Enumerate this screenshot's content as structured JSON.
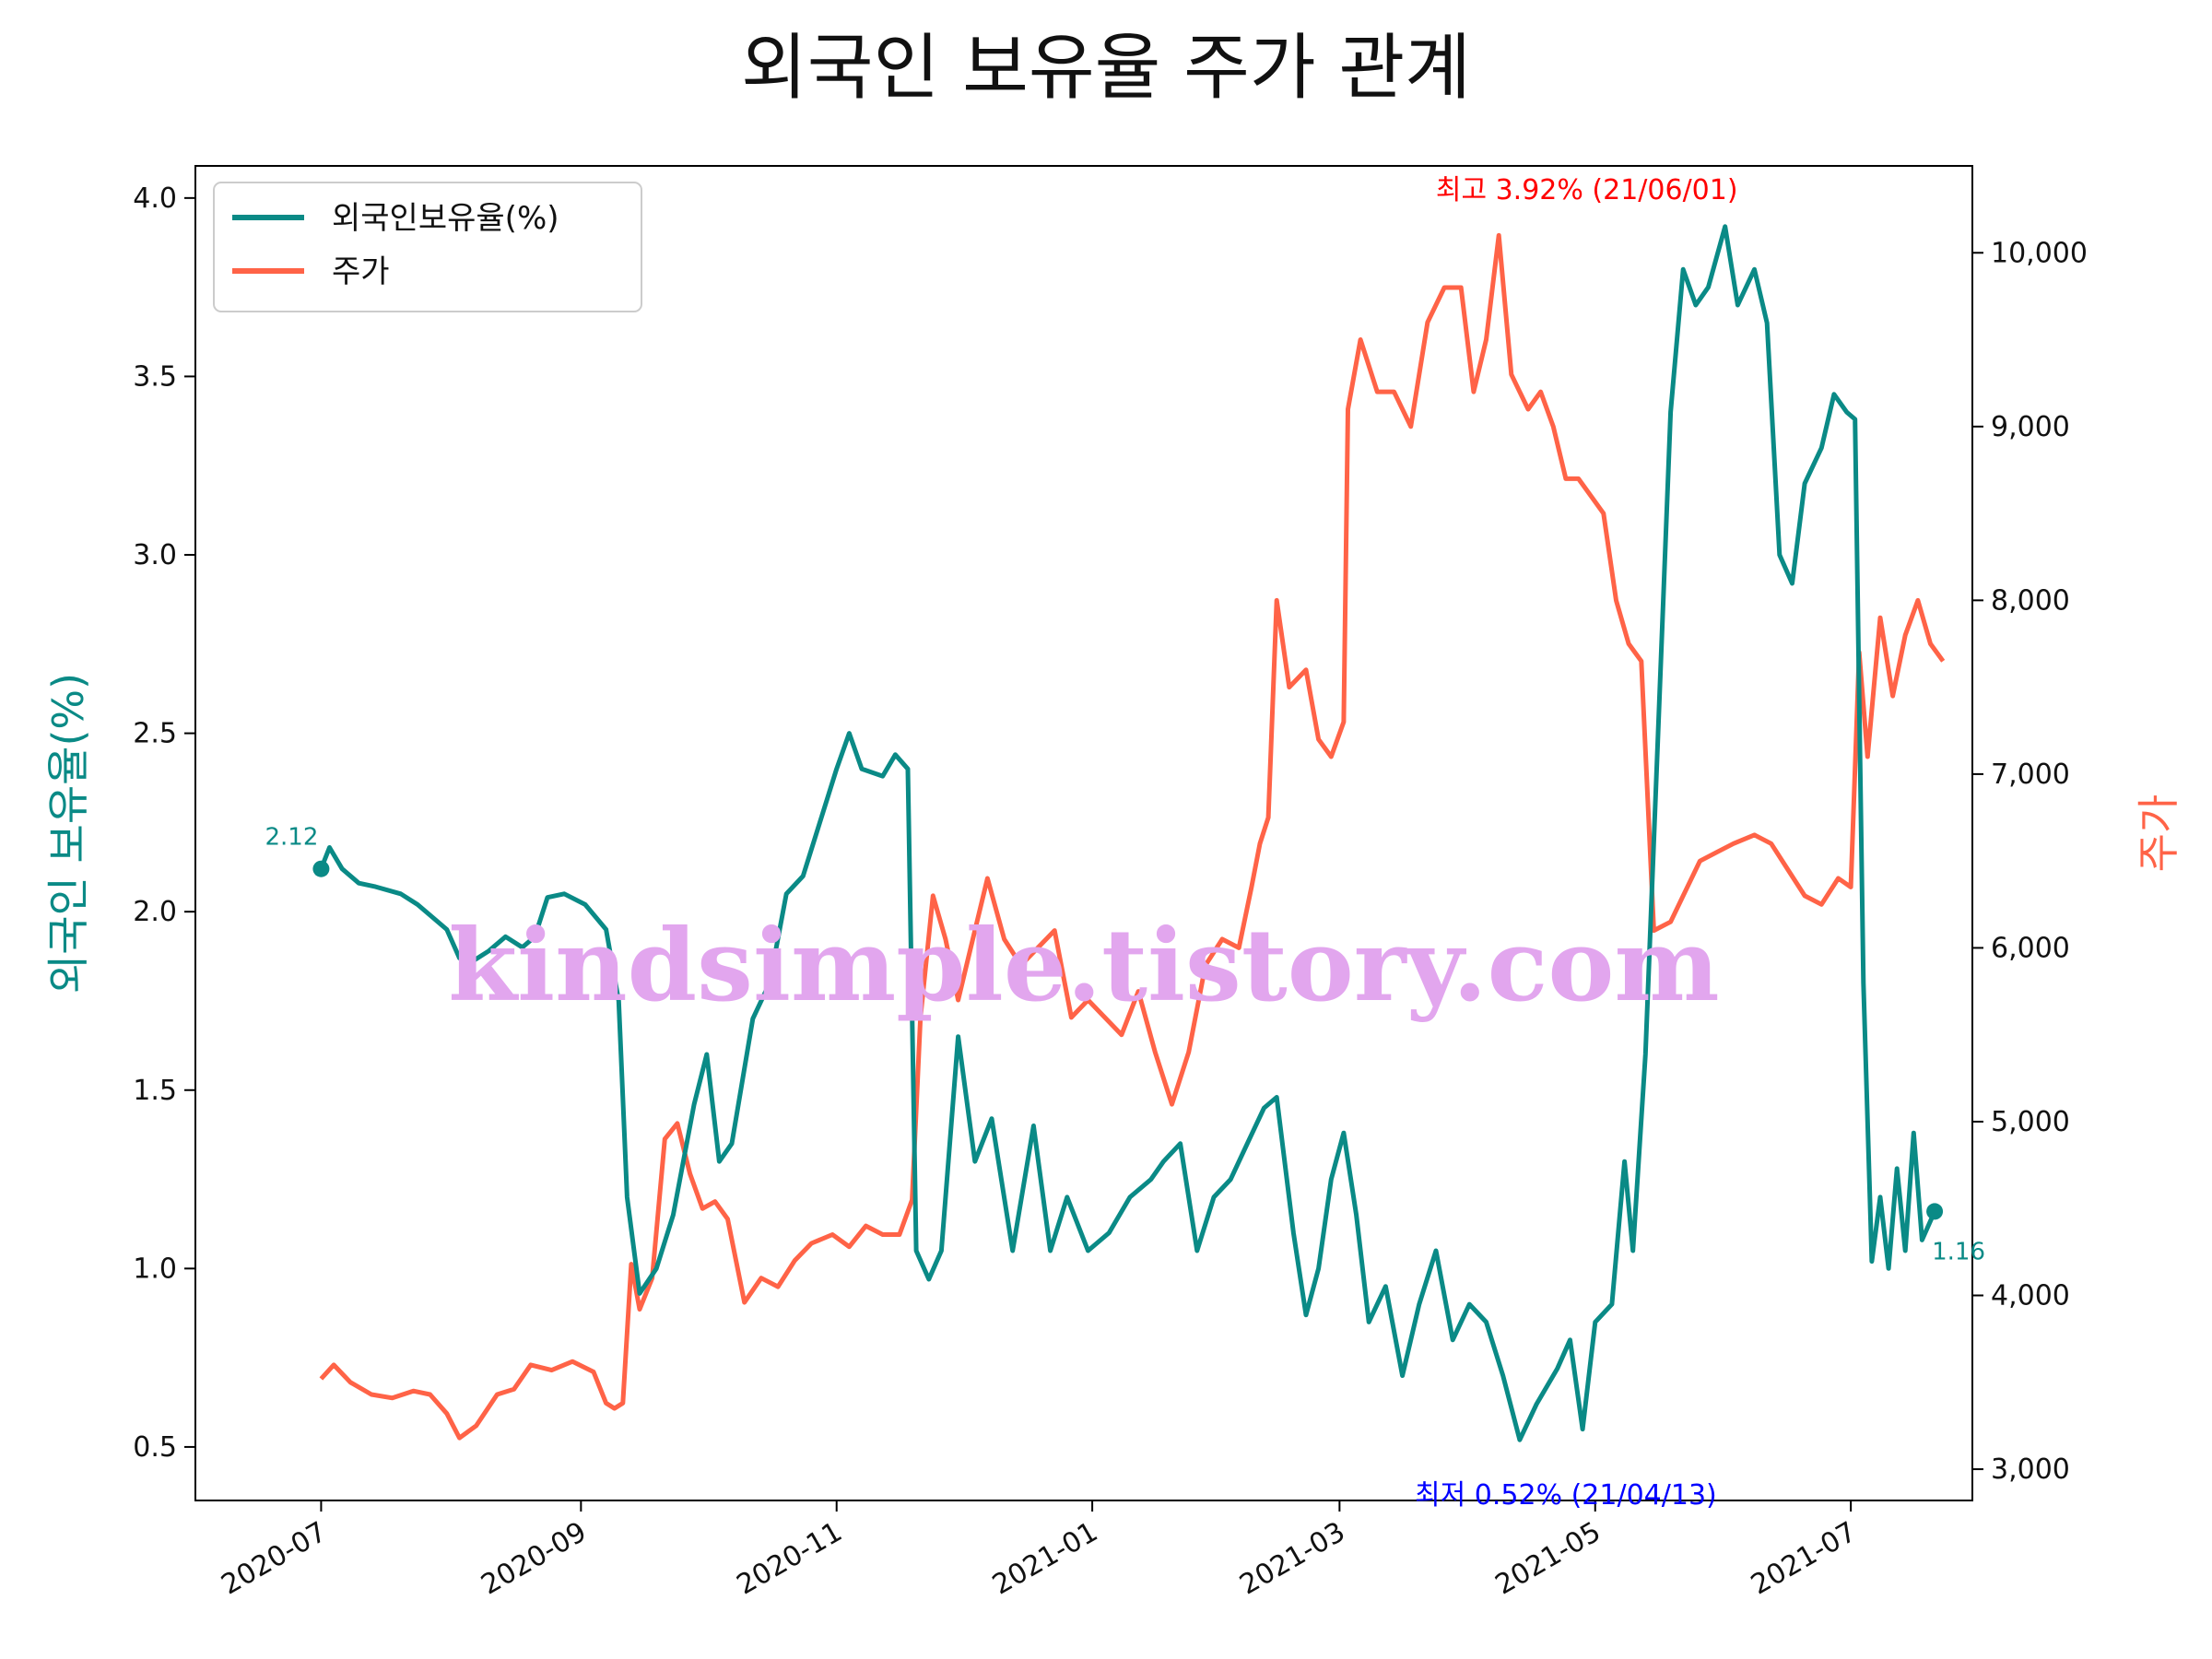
{
  "chart_data": {
    "type": "line",
    "title": "외국인 보유율 주가 관계",
    "ylabel_left": "외국인 보유율(%)",
    "ylabel_right": "주가",
    "ylim_left": [
      0.35,
      4.09
    ],
    "ylim_right": [
      2820,
      10500
    ],
    "xlim": [
      "2020-06-01",
      "2021-07-30"
    ],
    "x_ticks": [
      "2020-07",
      "2020-09",
      "2020-11",
      "2021-01",
      "2021-03",
      "2021-05",
      "2021-07"
    ],
    "y_ticks_left": [
      "0.5",
      "1.0",
      "1.5",
      "2.0",
      "2.5",
      "3.0",
      "3.5",
      "4.0"
    ],
    "y_ticks_right": [
      "3,000",
      "4,000",
      "5,000",
      "6,000",
      "7,000",
      "8,000",
      "9,000",
      "10,000"
    ],
    "legend_placement": "top-left",
    "grid": false,
    "series": [
      {
        "name": "외국인보유율(%)",
        "axis": "left",
        "color": "#0a8a86",
        "points": [
          [
            "2020-07-01",
            2.12
          ],
          [
            "2020-07-03",
            2.18
          ],
          [
            "2020-07-06",
            2.12
          ],
          [
            "2020-07-10",
            2.08
          ],
          [
            "2020-07-14",
            2.07
          ],
          [
            "2020-07-20",
            2.05
          ],
          [
            "2020-07-24",
            2.02
          ],
          [
            "2020-07-28",
            1.98
          ],
          [
            "2020-07-31",
            1.95
          ],
          [
            "2020-08-03",
            1.87
          ],
          [
            "2020-08-06",
            1.86
          ],
          [
            "2020-08-10",
            1.89
          ],
          [
            "2020-08-14",
            1.93
          ],
          [
            "2020-08-18",
            1.9
          ],
          [
            "2020-08-21",
            1.93
          ],
          [
            "2020-08-24",
            2.04
          ],
          [
            "2020-08-28",
            2.05
          ],
          [
            "2020-09-02",
            2.02
          ],
          [
            "2020-09-07",
            1.95
          ],
          [
            "2020-09-10",
            1.75
          ],
          [
            "2020-09-12",
            1.2
          ],
          [
            "2020-09-15",
            0.93
          ],
          [
            "2020-09-19",
            1.0
          ],
          [
            "2020-09-23",
            1.15
          ],
          [
            "2020-09-28",
            1.46
          ],
          [
            "2020-10-01",
            1.6
          ],
          [
            "2020-10-04",
            1.3
          ],
          [
            "2020-10-07",
            1.35
          ],
          [
            "2020-10-12",
            1.7
          ],
          [
            "2020-10-16",
            1.8
          ],
          [
            "2020-10-20",
            2.05
          ],
          [
            "2020-10-24",
            2.1
          ],
          [
            "2020-10-28",
            2.25
          ],
          [
            "2020-11-01",
            2.4
          ],
          [
            "2020-11-04",
            2.5
          ],
          [
            "2020-11-07",
            2.4
          ],
          [
            "2020-11-12",
            2.38
          ],
          [
            "2020-11-15",
            2.44
          ],
          [
            "2020-11-18",
            2.4
          ],
          [
            "2020-11-20",
            1.05
          ],
          [
            "2020-11-23",
            0.97
          ],
          [
            "2020-11-26",
            1.05
          ],
          [
            "2020-11-30",
            1.65
          ],
          [
            "2020-12-04",
            1.3
          ],
          [
            "2020-12-08",
            1.42
          ],
          [
            "2020-12-13",
            1.05
          ],
          [
            "2020-12-18",
            1.4
          ],
          [
            "2020-12-22",
            1.05
          ],
          [
            "2020-12-26",
            1.2
          ],
          [
            "2020-12-31",
            1.05
          ],
          [
            "2021-01-05",
            1.1
          ],
          [
            "2021-01-10",
            1.2
          ],
          [
            "2021-01-15",
            1.25
          ],
          [
            "2021-01-18",
            1.3
          ],
          [
            "2021-01-22",
            1.35
          ],
          [
            "2021-01-26",
            1.05
          ],
          [
            "2021-01-30",
            1.2
          ],
          [
            "2021-02-03",
            1.25
          ],
          [
            "2021-02-07",
            1.35
          ],
          [
            "2021-02-11",
            1.45
          ],
          [
            "2021-02-14",
            1.48
          ],
          [
            "2021-02-18",
            1.1
          ],
          [
            "2021-02-21",
            0.87
          ],
          [
            "2021-02-24",
            1.0
          ],
          [
            "2021-02-27",
            1.25
          ],
          [
            "2021-03-02",
            1.38
          ],
          [
            "2021-03-05",
            1.15
          ],
          [
            "2021-03-08",
            0.85
          ],
          [
            "2021-03-12",
            0.95
          ],
          [
            "2021-03-16",
            0.7
          ],
          [
            "2021-03-20",
            0.9
          ],
          [
            "2021-03-24",
            1.05
          ],
          [
            "2021-03-28",
            0.8
          ],
          [
            "2021-04-01",
            0.9
          ],
          [
            "2021-04-05",
            0.85
          ],
          [
            "2021-04-09",
            0.7
          ],
          [
            "2021-04-13",
            0.52
          ],
          [
            "2021-04-17",
            0.62
          ],
          [
            "2021-04-22",
            0.72
          ],
          [
            "2021-04-25",
            0.8
          ],
          [
            "2021-04-28",
            0.55
          ],
          [
            "2021-05-01",
            0.85
          ],
          [
            "2021-05-05",
            0.9
          ],
          [
            "2021-05-08",
            1.3
          ],
          [
            "2021-05-10",
            1.05
          ],
          [
            "2021-05-13",
            1.6
          ],
          [
            "2021-05-16",
            2.5
          ],
          [
            "2021-05-19",
            3.4
          ],
          [
            "2021-05-22",
            3.8
          ],
          [
            "2021-05-25",
            3.7
          ],
          [
            "2021-05-28",
            3.75
          ],
          [
            "2021-06-01",
            3.92
          ],
          [
            "2021-06-04",
            3.7
          ],
          [
            "2021-06-08",
            3.8
          ],
          [
            "2021-06-11",
            3.65
          ],
          [
            "2021-06-14",
            3.0
          ],
          [
            "2021-06-17",
            2.92
          ],
          [
            "2021-06-20",
            3.2
          ],
          [
            "2021-06-24",
            3.3
          ],
          [
            "2021-06-27",
            3.45
          ],
          [
            "2021-06-30",
            3.4
          ],
          [
            "2021-07-02",
            3.38
          ],
          [
            "2021-07-04",
            1.8
          ],
          [
            "2021-07-06",
            1.02
          ],
          [
            "2021-07-08",
            1.2
          ],
          [
            "2021-07-10",
            1.0
          ],
          [
            "2021-07-12",
            1.28
          ],
          [
            "2021-07-14",
            1.05
          ],
          [
            "2021-07-16",
            1.38
          ],
          [
            "2021-07-18",
            1.08
          ],
          [
            "2021-07-21",
            1.16
          ]
        ]
      },
      {
        "name": "주가",
        "axis": "right",
        "color": "#ff6347",
        "points": [
          [
            "2020-07-01",
            3520
          ],
          [
            "2020-07-04",
            3600
          ],
          [
            "2020-07-08",
            3500
          ],
          [
            "2020-07-13",
            3430
          ],
          [
            "2020-07-18",
            3410
          ],
          [
            "2020-07-23",
            3450
          ],
          [
            "2020-07-27",
            3430
          ],
          [
            "2020-07-31",
            3320
          ],
          [
            "2020-08-03",
            3180
          ],
          [
            "2020-08-07",
            3250
          ],
          [
            "2020-08-12",
            3430
          ],
          [
            "2020-08-16",
            3460
          ],
          [
            "2020-08-20",
            3600
          ],
          [
            "2020-08-25",
            3570
          ],
          [
            "2020-08-30",
            3620
          ],
          [
            "2020-09-04",
            3560
          ],
          [
            "2020-09-07",
            3380
          ],
          [
            "2020-09-09",
            3350
          ],
          [
            "2020-09-11",
            3380
          ],
          [
            "2020-09-13",
            4180
          ],
          [
            "2020-09-15",
            3920
          ],
          [
            "2020-09-18",
            4100
          ],
          [
            "2020-09-21",
            4900
          ],
          [
            "2020-09-24",
            4990
          ],
          [
            "2020-09-27",
            4700
          ],
          [
            "2020-09-30",
            4500
          ],
          [
            "2020-10-03",
            4540
          ],
          [
            "2020-10-06",
            4440
          ],
          [
            "2020-10-10",
            3960
          ],
          [
            "2020-10-14",
            4100
          ],
          [
            "2020-10-18",
            4050
          ],
          [
            "2020-10-22",
            4200
          ],
          [
            "2020-10-26",
            4300
          ],
          [
            "2020-10-31",
            4350
          ],
          [
            "2020-11-04",
            4280
          ],
          [
            "2020-11-08",
            4400
          ],
          [
            "2020-11-12",
            4350
          ],
          [
            "2020-11-16",
            4350
          ],
          [
            "2020-11-19",
            4550
          ],
          [
            "2020-11-21",
            5600
          ],
          [
            "2020-11-24",
            6300
          ],
          [
            "2020-11-27",
            6050
          ],
          [
            "2020-11-30",
            5700
          ],
          [
            "2020-12-03",
            6000
          ],
          [
            "2020-12-07",
            6400
          ],
          [
            "2020-12-11",
            6050
          ],
          [
            "2020-12-15",
            5900
          ],
          [
            "2020-12-19",
            6000
          ],
          [
            "2020-12-23",
            6100
          ],
          [
            "2020-12-27",
            5600
          ],
          [
            "2020-12-31",
            5700
          ],
          [
            "2021-01-04",
            5600
          ],
          [
            "2021-01-08",
            5500
          ],
          [
            "2021-01-12",
            5750
          ],
          [
            "2021-01-16",
            5400
          ],
          [
            "2021-01-20",
            5100
          ],
          [
            "2021-01-24",
            5400
          ],
          [
            "2021-01-28",
            5900
          ],
          [
            "2021-02-01",
            6050
          ],
          [
            "2021-02-05",
            6000
          ],
          [
            "2021-02-08",
            6350
          ],
          [
            "2021-02-10",
            6600
          ],
          [
            "2021-02-12",
            6750
          ],
          [
            "2021-02-14",
            8000
          ],
          [
            "2021-02-17",
            7500
          ],
          [
            "2021-02-21",
            7600
          ],
          [
            "2021-02-24",
            7200
          ],
          [
            "2021-02-27",
            7100
          ],
          [
            "2021-03-02",
            7300
          ],
          [
            "2021-03-03",
            9100
          ],
          [
            "2021-03-06",
            9500
          ],
          [
            "2021-03-10",
            9200
          ],
          [
            "2021-03-14",
            9200
          ],
          [
            "2021-03-18",
            9000
          ],
          [
            "2021-03-22",
            9600
          ],
          [
            "2021-03-26",
            9800
          ],
          [
            "2021-03-30",
            9800
          ],
          [
            "2021-04-02",
            9200
          ],
          [
            "2021-04-05",
            9500
          ],
          [
            "2021-04-08",
            10100
          ],
          [
            "2021-04-11",
            9300
          ],
          [
            "2021-04-15",
            9100
          ],
          [
            "2021-04-18",
            9200
          ],
          [
            "2021-04-21",
            9000
          ],
          [
            "2021-04-24",
            8700
          ],
          [
            "2021-04-27",
            8700
          ],
          [
            "2021-04-30",
            8600
          ],
          [
            "2021-05-03",
            8500
          ],
          [
            "2021-05-06",
            8000
          ],
          [
            "2021-05-09",
            7750
          ],
          [
            "2021-05-12",
            7650
          ],
          [
            "2021-05-15",
            6100
          ],
          [
            "2021-05-19",
            6150
          ],
          [
            "2021-05-22",
            6300
          ],
          [
            "2021-05-26",
            6500
          ],
          [
            "2021-05-30",
            6550
          ],
          [
            "2021-06-03",
            6600
          ],
          [
            "2021-06-08",
            6650
          ],
          [
            "2021-06-12",
            6600
          ],
          [
            "2021-06-16",
            6450
          ],
          [
            "2021-06-20",
            6300
          ],
          [
            "2021-06-24",
            6250
          ],
          [
            "2021-06-28",
            6400
          ],
          [
            "2021-07-01",
            6350
          ],
          [
            "2021-07-03",
            7700
          ],
          [
            "2021-07-05",
            7100
          ],
          [
            "2021-07-08",
            7900
          ],
          [
            "2021-07-11",
            7450
          ],
          [
            "2021-07-14",
            7800
          ],
          [
            "2021-07-17",
            8000
          ],
          [
            "2021-07-20",
            7750
          ],
          [
            "2021-07-23",
            7650
          ]
        ]
      }
    ],
    "annotations": {
      "start_value": "2.12",
      "end_value": "1.16",
      "max_label": "최고 3.92% (21/06/01)",
      "min_label": "최저 0.52% (21/04/13)"
    },
    "watermark": "kindsimple.tistory.com"
  }
}
